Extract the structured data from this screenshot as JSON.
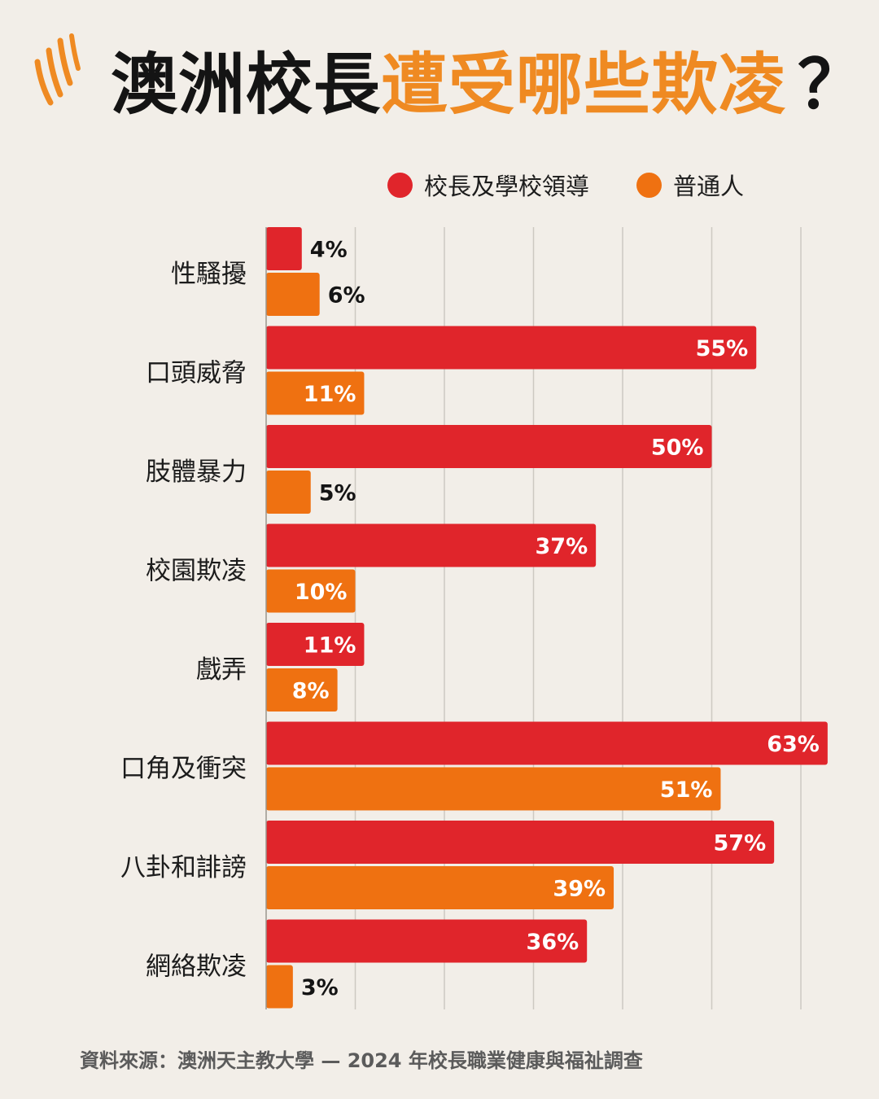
{
  "title": {
    "part1": "澳洲校長",
    "part2": "遭受哪些欺凌",
    "part3": "？"
  },
  "logo": {
    "icon": "sbs-logo-icon"
  },
  "colors": {
    "principals": "#e0252b",
    "general": "#ef7111",
    "accent": "#ef8a22",
    "background": "#f2eee8"
  },
  "chart_data": {
    "type": "bar",
    "orientation": "horizontal",
    "title": "澳洲校長遭受哪些欺凌？",
    "categories": [
      "性騷擾",
      "口頭威脅",
      "肢體暴力",
      "校園欺凌",
      "戲弄",
      "口角及衝突",
      "八卦和誹謗",
      "網絡欺凌"
    ],
    "series": [
      {
        "name": "校長及學校領導",
        "values": [
          4,
          55,
          50,
          37,
          11,
          63,
          57,
          36
        ]
      },
      {
        "name": "普通人",
        "values": [
          6,
          11,
          5,
          10,
          8,
          51,
          39,
          3
        ]
      }
    ],
    "value_suffix": "%",
    "xlim": [
      0,
      60
    ],
    "grid": true,
    "legend": "top-right"
  },
  "source": "資料來源：澳洲天主教大學 — 2024 年校長職業健康與福祉調查"
}
